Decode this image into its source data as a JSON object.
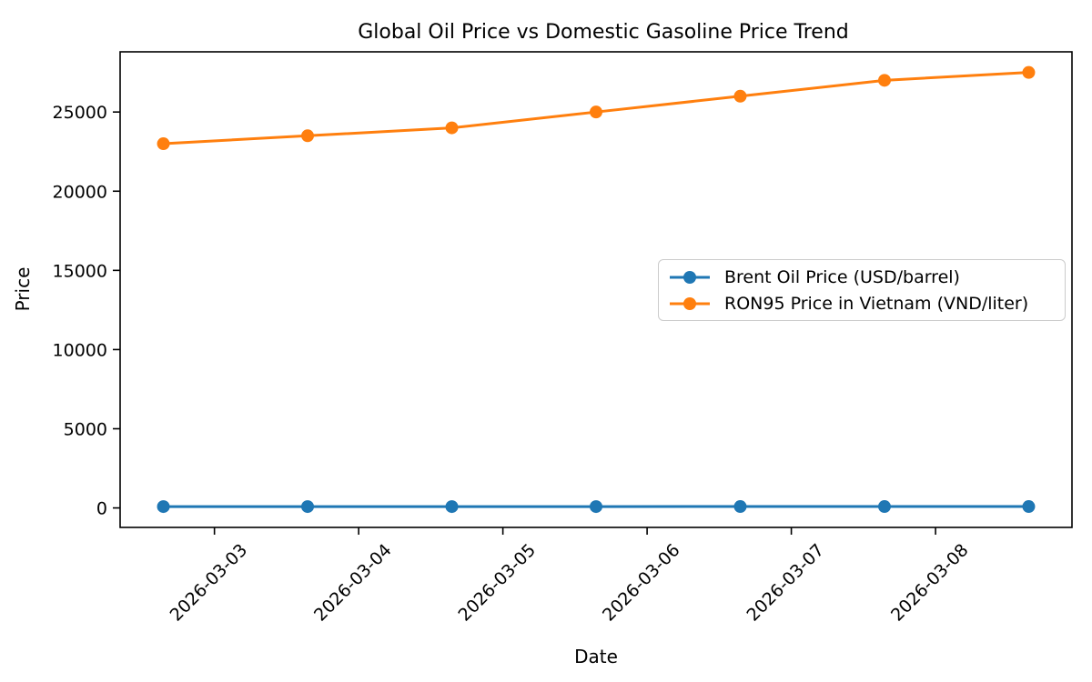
{
  "chart_data": {
    "type": "line",
    "title": "Global Oil Price vs Domestic Gasoline Price Trend",
    "xlabel": "Date",
    "ylabel": "Price",
    "x": [
      "2026-03-02",
      "2026-03-03",
      "2026-03-04",
      "2026-03-05",
      "2026-03-06",
      "2026-03-07",
      "2026-03-08"
    ],
    "x_tick_labels": [
      "2026-03-03",
      "2026-03-04",
      "2026-03-05",
      "2026-03-06",
      "2026-03-07",
      "2026-03-08"
    ],
    "y_ticks": [
      0,
      5000,
      10000,
      15000,
      20000,
      25000
    ],
    "y_tick_labels": [
      "0",
      "5000",
      "10000",
      "15000",
      "20000",
      "25000"
    ],
    "ylim": [
      -1230,
      28800
    ],
    "grid": false,
    "legend_position": "center-right",
    "series": [
      {
        "name": "Brent Oil Price (USD/barrel)",
        "color": "#1f77b4",
        "values": [
          85,
          86,
          86,
          87,
          88,
          88,
          89
        ]
      },
      {
        "name": "RON95 Price in Vietnam (VND/liter)",
        "color": "#ff7f0e",
        "values": [
          23000,
          23500,
          24000,
          25000,
          26000,
          27000,
          27500
        ]
      }
    ]
  },
  "colors": {
    "spine": "#000000",
    "background": "#ffffff",
    "legend_border": "#cbcbcb"
  }
}
